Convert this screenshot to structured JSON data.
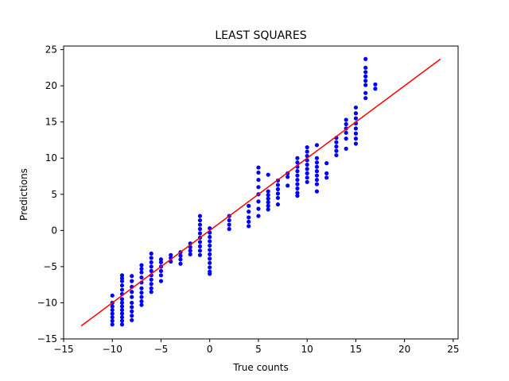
{
  "chart_data": {
    "type": "scatter",
    "title": "LEAST SQUARES",
    "xlabel": "True counts",
    "ylabel": "Predictions",
    "xlim": [
      -15,
      25.5
    ],
    "ylim": [
      -15,
      25.5
    ],
    "xticks": [
      -15,
      -10,
      -5,
      0,
      5,
      10,
      15,
      20,
      25
    ],
    "yticks": [
      -15,
      -10,
      -5,
      0,
      5,
      10,
      15,
      20,
      25
    ],
    "xtick_labels": [
      "−15",
      "−10",
      "−5",
      "0",
      "5",
      "10",
      "15",
      "20",
      "25"
    ],
    "ytick_labels": [
      "−15",
      "−10",
      "−5",
      "0",
      "5",
      "10",
      "15",
      "20",
      "25"
    ],
    "grid": false,
    "colors": {
      "points": "#0000ff",
      "fit_line": "#ff0000",
      "axes": "#000000"
    },
    "fit_line": {
      "x": [
        -13.2,
        23.7
      ],
      "y": [
        -13.2,
        23.7
      ]
    },
    "point_columns": [
      {
        "x": -10,
        "y": [
          -9.0,
          -10.0,
          -10.5,
          -11.0,
          -11.5,
          -12.0,
          -12.5,
          -13.0
        ]
      },
      {
        "x": -9,
        "y": [
          -6.2,
          -6.6,
          -7.0,
          -7.6,
          -8.2,
          -8.8,
          -9.5,
          -10.0,
          -10.5,
          -11.0,
          -11.5,
          -12.0,
          -12.5,
          -13.0
        ]
      },
      {
        "x": -8,
        "y": [
          -6.3,
          -7.0,
          -7.8,
          -8.5,
          -9.2,
          -10.0,
          -10.6,
          -11.2,
          -11.8,
          -12.4
        ]
      },
      {
        "x": -7,
        "y": [
          -4.8,
          -5.3,
          -5.8,
          -6.5,
          -7.2,
          -8.0,
          -8.6,
          -9.2,
          -9.8,
          -10.3
        ]
      },
      {
        "x": -6,
        "y": [
          -3.2,
          -3.8,
          -4.4,
          -5.0,
          -5.6,
          -6.2,
          -6.8,
          -7.4,
          -8.0,
          -8.5
        ]
      },
      {
        "x": -5,
        "y": [
          -4.0,
          -4.4,
          -5.0,
          -5.6,
          -6.2,
          -7.0
        ]
      },
      {
        "x": -4,
        "y": [
          -3.4,
          -3.8,
          -4.3
        ]
      },
      {
        "x": -3,
        "y": [
          -3.0,
          -3.5,
          -4.0,
          -4.6
        ]
      },
      {
        "x": -2,
        "y": [
          -1.8,
          -2.3,
          -2.8,
          -3.3
        ]
      },
      {
        "x": -1,
        "y": [
          2.0,
          1.4,
          0.8,
          0.2,
          -0.4,
          -1.0,
          -1.6,
          -2.2,
          -2.8,
          -3.4
        ]
      },
      {
        "x": 0,
        "y": [
          0.3,
          -0.3,
          -0.9,
          -1.5,
          -2.1,
          -2.7,
          -3.3,
          -3.9,
          -4.5,
          -5.1,
          -5.7,
          -6.0
        ]
      },
      {
        "x": 2,
        "y": [
          2.0,
          1.4,
          0.8,
          0.2
        ]
      },
      {
        "x": 4,
        "y": [
          3.4,
          2.6,
          1.8,
          1.2,
          0.6
        ]
      },
      {
        "x": 5,
        "y": [
          8.7,
          8.0,
          7.0,
          6.0,
          5.0,
          4.0,
          3.0,
          2.0
        ]
      },
      {
        "x": 6,
        "y": [
          7.7,
          5.4,
          4.9,
          4.4,
          3.9,
          3.4,
          2.9
        ]
      },
      {
        "x": 7,
        "y": [
          6.9,
          6.3,
          5.7,
          5.1,
          4.5,
          3.6
        ]
      },
      {
        "x": 8,
        "y": [
          7.9,
          7.4,
          6.2
        ]
      },
      {
        "x": 9,
        "y": [
          10.0,
          9.4,
          8.8,
          8.2,
          7.6,
          7.0,
          6.4,
          5.8,
          5.2,
          4.8
        ]
      },
      {
        "x": 10,
        "y": [
          11.5,
          10.9,
          10.3,
          9.7,
          9.1,
          8.5,
          7.9,
          7.3,
          6.7
        ]
      },
      {
        "x": 11,
        "y": [
          11.8,
          10.0,
          9.4,
          8.8,
          8.2,
          7.6,
          7.0,
          6.4,
          5.4
        ]
      },
      {
        "x": 12,
        "y": [
          9.3,
          7.9,
          7.3
        ]
      },
      {
        "x": 13,
        "y": [
          12.8,
          12.2,
          11.6,
          11.0,
          10.4
        ]
      },
      {
        "x": 14,
        "y": [
          15.3,
          14.7,
          14.1,
          13.5,
          12.7,
          11.3
        ]
      },
      {
        "x": 15,
        "y": [
          17.0,
          16.2,
          15.5,
          14.8,
          14.1,
          13.4,
          12.7,
          12.0
        ]
      },
      {
        "x": 16,
        "y": [
          23.7,
          22.5,
          21.9,
          21.3,
          20.7,
          20.1,
          19.0,
          18.3
        ]
      },
      {
        "x": 17,
        "y": [
          20.2,
          19.6
        ]
      }
    ]
  }
}
